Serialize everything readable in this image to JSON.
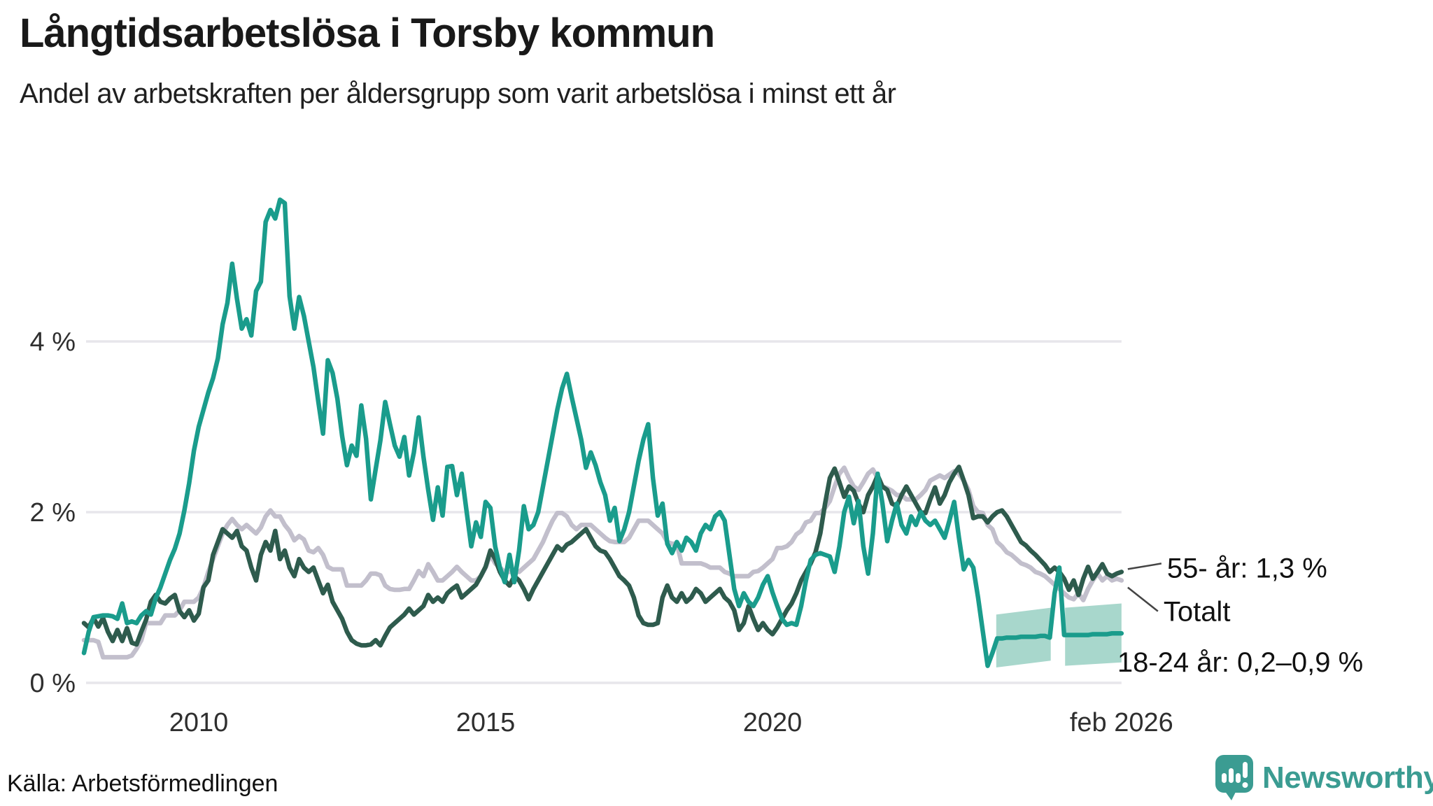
{
  "header": {
    "title": "Långtidsarbetslösa i Torsby kommun",
    "subtitle": "Andel av arbetskraften per åldersgrupp som varit arbetslösa i minst ett år"
  },
  "footer": {
    "source": "Källa: Arbetsförmedlingen",
    "logo_text": "Newsworthy"
  },
  "colors": {
    "teal": "#1a9c8c",
    "dark_green": "#2e5b4d",
    "gray": "#c2bfcc",
    "band": "#a8d7cc",
    "grid": "#e7e6eb",
    "tick_text": "#2f2f2f",
    "annotation_text": "#111111",
    "connector": "#444444",
    "logo": "#3b9c92"
  },
  "chart_data": {
    "type": "line",
    "title": "Långtidsarbetslösa i Torsby kommun",
    "subtitle": "Andel av arbetskraften per åldersgrupp som varit arbetslösa i minst ett år",
    "xlabel": "",
    "ylabel": "",
    "grid": "horizontal",
    "legend_position": "end-of-line-labels",
    "x_start": 2008.0,
    "x_step": 0.08333,
    "x_end": 2026.083,
    "xlim": [
      2008.0,
      2026.25
    ],
    "ylim": [
      0,
      5.8
    ],
    "y_ticks": [
      {
        "v": 0,
        "label": "0 %"
      },
      {
        "v": 2,
        "label": "2 %"
      },
      {
        "v": 4,
        "label": "4 %"
      }
    ],
    "x_ticks": [
      {
        "v": 2010,
        "label": "2010"
      },
      {
        "v": 2015,
        "label": "2015"
      },
      {
        "v": 2020,
        "label": "2020"
      },
      {
        "v": 2026.083,
        "label": "feb 2026"
      }
    ],
    "series": [
      {
        "name": "Totalt",
        "color_key": "gray",
        "values": [
          0.5,
          0.5,
          0.5,
          0.48,
          0.3,
          0.3,
          0.3,
          0.3,
          0.3,
          0.3,
          0.32,
          0.4,
          0.5,
          0.7,
          0.7,
          0.7,
          0.7,
          0.79,
          0.79,
          0.79,
          0.85,
          0.95,
          0.95,
          0.95,
          1.0,
          1.12,
          1.3,
          1.45,
          1.6,
          1.75,
          1.85,
          1.92,
          1.85,
          1.8,
          1.85,
          1.8,
          1.75,
          1.82,
          1.95,
          2.02,
          1.95,
          1.95,
          1.85,
          1.78,
          1.67,
          1.72,
          1.68,
          1.55,
          1.53,
          1.58,
          1.5,
          1.36,
          1.33,
          1.33,
          1.33,
          1.14,
          1.14,
          1.14,
          1.14,
          1.2,
          1.28,
          1.28,
          1.26,
          1.14,
          1.1,
          1.09,
          1.09,
          1.1,
          1.1,
          1.2,
          1.31,
          1.25,
          1.39,
          1.3,
          1.2,
          1.2,
          1.25,
          1.3,
          1.36,
          1.3,
          1.25,
          1.2,
          1.2,
          1.25,
          1.35,
          1.5,
          1.4,
          1.35,
          1.3,
          1.3,
          1.3,
          1.3,
          1.35,
          1.4,
          1.45,
          1.55,
          1.65,
          1.78,
          1.9,
          1.99,
          1.99,
          1.95,
          1.85,
          1.8,
          1.85,
          1.85,
          1.85,
          1.8,
          1.75,
          1.7,
          1.66,
          1.65,
          1.65,
          1.65,
          1.7,
          1.8,
          1.9,
          1.9,
          1.9,
          1.85,
          1.8,
          1.75,
          1.65,
          1.63,
          1.63,
          1.4,
          1.4,
          1.4,
          1.4,
          1.4,
          1.38,
          1.35,
          1.35,
          1.35,
          1.3,
          1.28,
          1.25,
          1.25,
          1.25,
          1.25,
          1.3,
          1.31,
          1.35,
          1.4,
          1.45,
          1.58,
          1.58,
          1.6,
          1.65,
          1.74,
          1.78,
          1.88,
          1.9,
          1.99,
          1.99,
          2.05,
          2.13,
          2.3,
          2.45,
          2.52,
          2.4,
          2.3,
          2.26,
          2.35,
          2.45,
          2.5,
          2.4,
          2.3,
          2.28,
          2.25,
          2.2,
          2.2,
          2.15,
          2.15,
          2.15,
          2.2,
          2.26,
          2.37,
          2.4,
          2.43,
          2.4,
          2.44,
          2.48,
          2.45,
          2.37,
          2.26,
          2.07,
          2.0,
          1.99,
          1.85,
          1.8,
          1.65,
          1.6,
          1.53,
          1.5,
          1.45,
          1.4,
          1.38,
          1.35,
          1.3,
          1.28,
          1.25,
          1.2,
          1.15,
          1.1,
          1.05,
          1.0,
          0.98,
          1.05,
          0.97,
          1.1,
          1.2,
          1.28,
          1.2,
          1.25,
          1.2,
          1.22,
          1.2
        ]
      },
      {
        "name": "55- år",
        "color_key": "dark_green",
        "values": [
          0.7,
          0.65,
          0.76,
          0.66,
          0.76,
          0.6,
          0.49,
          0.62,
          0.49,
          0.64,
          0.47,
          0.45,
          0.6,
          0.74,
          0.95,
          1.03,
          0.95,
          0.93,
          0.99,
          1.03,
          0.84,
          0.77,
          0.85,
          0.73,
          0.81,
          1.12,
          1.2,
          1.5,
          1.65,
          1.8,
          1.75,
          1.7,
          1.78,
          1.6,
          1.55,
          1.35,
          1.2,
          1.5,
          1.65,
          1.55,
          1.78,
          1.45,
          1.55,
          1.35,
          1.25,
          1.45,
          1.35,
          1.3,
          1.35,
          1.2,
          1.05,
          1.15,
          0.95,
          0.85,
          0.75,
          0.6,
          0.5,
          0.46,
          0.44,
          0.44,
          0.45,
          0.5,
          0.44,
          0.55,
          0.65,
          0.7,
          0.75,
          0.8,
          0.87,
          0.8,
          0.85,
          0.9,
          1.03,
          0.95,
          1.0,
          0.95,
          1.05,
          1.1,
          1.14,
          1.0,
          1.05,
          1.1,
          1.15,
          1.25,
          1.36,
          1.55,
          1.45,
          1.3,
          1.2,
          1.14,
          1.25,
          1.2,
          1.1,
          0.98,
          1.1,
          1.2,
          1.3,
          1.4,
          1.5,
          1.6,
          1.55,
          1.62,
          1.65,
          1.7,
          1.75,
          1.8,
          1.7,
          1.6,
          1.55,
          1.53,
          1.45,
          1.35,
          1.25,
          1.2,
          1.14,
          1.0,
          0.79,
          0.7,
          0.68,
          0.68,
          0.7,
          1.0,
          1.14,
          1.0,
          0.95,
          1.05,
          0.95,
          1.0,
          1.1,
          1.05,
          0.95,
          1.0,
          1.05,
          1.1,
          1.0,
          0.95,
          0.85,
          0.62,
          0.7,
          0.9,
          0.75,
          0.62,
          0.7,
          0.62,
          0.57,
          0.65,
          0.75,
          0.85,
          0.93,
          1.05,
          1.2,
          1.3,
          1.4,
          1.53,
          1.75,
          2.1,
          2.4,
          2.51,
          2.35,
          2.18,
          2.3,
          2.25,
          2.1,
          2.0,
          2.2,
          2.3,
          2.43,
          2.3,
          2.26,
          2.1,
          2.07,
          2.2,
          2.3,
          2.2,
          2.1,
          2.0,
          1.99,
          2.15,
          2.29,
          2.1,
          2.2,
          2.35,
          2.45,
          2.53,
          2.37,
          2.2,
          1.93,
          1.95,
          1.95,
          1.88,
          1.95,
          2.0,
          2.02,
          1.95,
          1.85,
          1.75,
          1.65,
          1.61,
          1.55,
          1.5,
          1.44,
          1.38,
          1.3,
          1.35,
          1.3,
          1.22,
          1.09,
          1.2,
          1.03,
          1.22,
          1.36,
          1.22,
          1.3,
          1.39,
          1.28,
          1.25,
          1.28,
          1.3
        ]
      },
      {
        "name": "18-24 år",
        "color_key": "teal",
        "values": [
          0.35,
          0.6,
          0.77,
          0.78,
          0.79,
          0.79,
          0.78,
          0.75,
          0.93,
          0.7,
          0.72,
          0.7,
          0.79,
          0.84,
          0.8,
          0.99,
          1.12,
          1.28,
          1.44,
          1.57,
          1.75,
          2.02,
          2.34,
          2.72,
          3.0,
          3.2,
          3.4,
          3.57,
          3.8,
          4.2,
          4.45,
          4.91,
          4.5,
          4.15,
          4.26,
          4.07,
          4.59,
          4.7,
          5.4,
          5.54,
          5.44,
          5.66,
          5.62,
          4.53,
          4.15,
          4.52,
          4.3,
          4.0,
          3.7,
          3.3,
          2.92,
          3.78,
          3.63,
          3.33,
          2.89,
          2.55,
          2.78,
          2.66,
          3.25,
          2.86,
          2.15,
          2.5,
          2.84,
          3.29,
          3.03,
          2.78,
          2.65,
          2.88,
          2.43,
          2.7,
          3.11,
          2.65,
          2.26,
          1.91,
          2.29,
          1.96,
          2.53,
          2.54,
          2.2,
          2.45,
          2.02,
          1.6,
          1.88,
          1.71,
          2.12,
          2.05,
          1.6,
          1.35,
          1.18,
          1.5,
          1.18,
          1.55,
          2.07,
          1.8,
          1.85,
          2.0,
          2.3,
          2.6,
          2.9,
          3.2,
          3.45,
          3.62,
          3.35,
          3.1,
          2.85,
          2.52,
          2.7,
          2.55,
          2.35,
          2.2,
          1.9,
          2.05,
          1.66,
          1.8,
          2.0,
          2.3,
          2.6,
          2.85,
          3.03,
          2.4,
          1.96,
          2.1,
          1.63,
          1.52,
          1.65,
          1.55,
          1.7,
          1.65,
          1.55,
          1.75,
          1.85,
          1.8,
          1.95,
          2.0,
          1.9,
          1.5,
          1.1,
          0.9,
          1.05,
          0.95,
          0.9,
          1.0,
          1.15,
          1.25,
          1.06,
          0.9,
          0.75,
          0.68,
          0.7,
          0.68,
          0.9,
          1.2,
          1.44,
          1.5,
          1.52,
          1.5,
          1.48,
          1.3,
          1.6,
          2.0,
          2.18,
          1.87,
          2.13,
          1.6,
          1.28,
          1.75,
          2.45,
          2.1,
          1.66,
          1.9,
          2.1,
          1.85,
          1.75,
          1.95,
          1.85,
          2.0,
          1.9,
          1.85,
          1.9,
          1.8,
          1.7,
          1.9,
          2.12,
          1.7,
          1.33,
          1.44,
          1.35,
          1.0,
          0.6,
          0.2,
          0.35,
          0.52,
          0.52,
          0.53,
          0.53,
          0.53,
          0.54,
          0.54,
          0.54,
          0.54,
          0.55,
          0.55,
          0.53,
          1.05,
          1.35,
          0.56,
          0.56,
          0.56,
          0.56,
          0.56,
          0.56,
          0.57,
          0.57,
          0.57,
          0.57,
          0.58,
          0.58,
          0.58
        ]
      }
    ],
    "band": {
      "series": "18-24 år",
      "label_range": "0,2–0,9 %",
      "segments": [
        {
          "x": [
            2023.9,
            2024.85
          ],
          "low": [
            0.18,
            0.26
          ],
          "high": [
            0.8,
            0.88
          ]
        },
        {
          "x": [
            2025.1,
            2026.083
          ],
          "low": [
            0.2,
            0.24
          ],
          "high": [
            0.88,
            0.93
          ]
        }
      ]
    },
    "annotations": [
      {
        "series": "55- år",
        "label": "55- år: 1,3 %"
      },
      {
        "series": "Totalt",
        "label": "Totalt"
      },
      {
        "series": "18-24 år",
        "label": "18-24 år: 0,2–0,9 %"
      }
    ]
  }
}
